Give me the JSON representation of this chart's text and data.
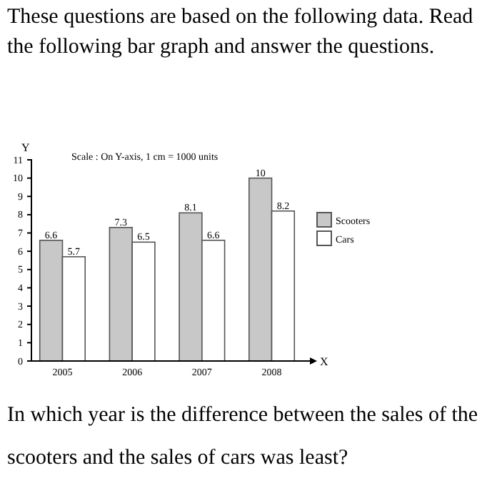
{
  "chart_data": {
    "type": "bar",
    "title": "These questions are based on the following data. Read the following bar graph and answer the questions.",
    "subtitle": "Scale : On Y-axis, 1 cm = 1000 units",
    "xlabel": "X",
    "ylabel": "Y",
    "categories": [
      "2005",
      "2006",
      "2007",
      "2008"
    ],
    "series": [
      {
        "name": "Scooters",
        "color": "#c8c8c8",
        "values": [
          6.6,
          7.3,
          8.1,
          10
        ]
      },
      {
        "name": "Cars",
        "color": "#ffffff",
        "values": [
          5.7,
          6.5,
          6.6,
          8.2
        ]
      }
    ],
    "ylim": [
      0,
      11
    ],
    "yticks": [
      0,
      1,
      2,
      3,
      4,
      5,
      6,
      7,
      8,
      9,
      10,
      11
    ],
    "data_labels": true,
    "legend": "right",
    "grid": false,
    "annotations": [
      "In which year is the difference between the sales of the scooters and the sales of cars was least?"
    ]
  }
}
